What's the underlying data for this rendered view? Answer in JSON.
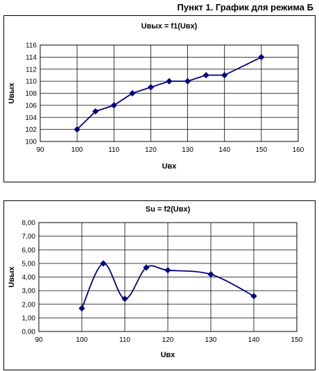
{
  "page": {
    "heading": "Пункт 1. График для режима Б"
  },
  "chart_data": [
    {
      "type": "line",
      "title": "Uвых = f1(Uвх)",
      "xlabel": "Uвх",
      "ylabel": "Uвых",
      "xlim": [
        90,
        160
      ],
      "ylim": [
        100,
        116
      ],
      "x_ticks": [
        90,
        100,
        110,
        120,
        130,
        140,
        150,
        160
      ],
      "y_ticks": [
        100,
        102,
        104,
        106,
        108,
        110,
        112,
        114,
        116
      ],
      "y_tick_format": "int",
      "grid": true,
      "legend": "none",
      "series_color": "#00007f",
      "series": [
        {
          "x": [
            100,
            105,
            110,
            115,
            120,
            125,
            130,
            135,
            140,
            150
          ],
          "values": [
            102,
            105,
            106,
            108,
            109,
            110,
            110,
            111,
            111,
            114
          ]
        }
      ]
    },
    {
      "type": "line",
      "title": "Su = f2(Uвх)",
      "xlabel": "Uвх",
      "ylabel": "Uвых",
      "xlim": [
        90,
        150
      ],
      "ylim": [
        0,
        8
      ],
      "x_ticks": [
        90,
        100,
        110,
        120,
        130,
        140,
        150
      ],
      "y_ticks": [
        0,
        1,
        2,
        3,
        4,
        5,
        6,
        7,
        8
      ],
      "y_tick_format": "comma2",
      "grid": true,
      "legend": "none",
      "series_color": "#00007f",
      "series": [
        {
          "x": [
            100,
            105,
            110,
            115,
            120,
            130,
            140
          ],
          "values": [
            1.7,
            5.0,
            2.4,
            4.7,
            4.5,
            4.2,
            2.6
          ]
        }
      ]
    }
  ]
}
